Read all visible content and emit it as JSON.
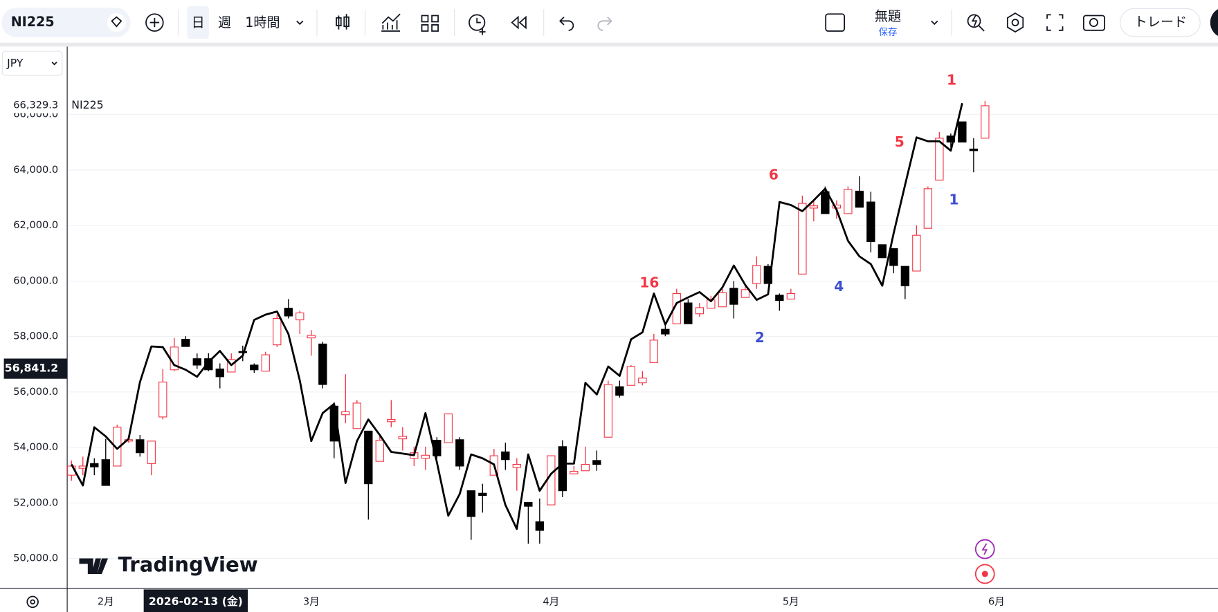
{
  "toolbar": {
    "symbol": "NI225",
    "intervals": [
      "日",
      "週",
      "1時間"
    ],
    "layout_name": "無題",
    "save": "保存",
    "trade": "トレード"
  },
  "brand": "TradingView",
  "chart_data": {
    "type": "candlestick",
    "symbol": "NI225",
    "currency": "JPY",
    "up_color": "#f23645",
    "down_color": "#000000",
    "ohlc": [
      [
        53000,
        53530,
        52800,
        53330
      ],
      [
        53250,
        53670,
        53000,
        53330
      ],
      [
        53420,
        53610,
        53000,
        53300
      ],
      [
        53560,
        54310,
        52630,
        52630
      ],
      [
        53330,
        54820,
        53330,
        54730
      ],
      [
        54230,
        54400,
        54170,
        54280
      ],
      [
        54280,
        54450,
        53670,
        53810
      ],
      [
        53420,
        54230,
        53000,
        54230
      ],
      [
        55100,
        56830,
        55010,
        56360
      ],
      [
        56800,
        57950,
        56750,
        57620
      ],
      [
        57900,
        58010,
        57640,
        57640
      ],
      [
        57200,
        57390,
        56830,
        56970
      ],
      [
        57200,
        57400,
        56750,
        56800
      ],
      [
        56830,
        57030,
        56130,
        56550
      ],
      [
        56720,
        57390,
        56720,
        57170
      ],
      [
        57460,
        57670,
        57110,
        57440
      ],
      [
        56970,
        57030,
        56690,
        56800
      ],
      [
        56750,
        57450,
        56750,
        57340
      ],
      [
        57700,
        58790,
        57620,
        58650
      ],
      [
        59020,
        59350,
        58650,
        58740
      ],
      [
        58600,
        58930,
        58090,
        58850
      ],
      [
        57950,
        58230,
        57310,
        58040
      ],
      [
        57730,
        57810,
        56130,
        56270
      ],
      [
        55490,
        55630,
        53610,
        54230
      ],
      [
        55180,
        56640,
        54870,
        55290
      ],
      [
        54680,
        55710,
        54680,
        55600
      ],
      [
        54590,
        54590,
        51400,
        52690
      ],
      [
        53500,
        54450,
        53500,
        54260
      ],
      [
        54930,
        55710,
        54730,
        55010
      ],
      [
        54310,
        54730,
        53890,
        54400
      ],
      [
        53610,
        54030,
        53330,
        53810
      ],
      [
        53610,
        54030,
        53190,
        53720
      ],
      [
        54260,
        54370,
        53610,
        53700
      ],
      [
        54170,
        55210,
        54170,
        55210
      ],
      [
        54280,
        54370,
        53190,
        53330
      ],
      [
        52440,
        52440,
        50670,
        51510
      ],
      [
        52350,
        52690,
        51650,
        52270
      ],
      [
        53000,
        53950,
        53000,
        53700
      ],
      [
        53840,
        54170,
        53190,
        53560
      ],
      [
        53280,
        53610,
        52440,
        53390
      ],
      [
        52020,
        52020,
        50530,
        51880
      ],
      [
        51320,
        52160,
        50530,
        51010
      ],
      [
        51930,
        53700,
        51930,
        53700
      ],
      [
        54030,
        54260,
        52210,
        52440
      ],
      [
        53050,
        53330,
        53050,
        53140
      ],
      [
        53160,
        54030,
        53160,
        53390
      ],
      [
        53530,
        53890,
        53160,
        53390
      ],
      [
        54370,
        56410,
        54370,
        56270
      ],
      [
        56190,
        56410,
        55800,
        55880
      ],
      [
        56240,
        56970,
        56240,
        56920
      ],
      [
        56330,
        56750,
        56240,
        56500
      ],
      [
        57060,
        58090,
        57060,
        57870
      ],
      [
        58260,
        58430,
        58010,
        58090
      ],
      [
        58460,
        59720,
        58460,
        59550
      ],
      [
        59210,
        59350,
        58460,
        58460
      ],
      [
        58820,
        59210,
        58710,
        59040
      ],
      [
        59020,
        59470,
        59020,
        59320
      ],
      [
        59070,
        59720,
        59070,
        59580
      ],
      [
        59740,
        60000,
        58650,
        59160
      ],
      [
        59410,
        59800,
        59410,
        59690
      ],
      [
        59910,
        60890,
        59720,
        60560
      ],
      [
        60530,
        60610,
        59910,
        59910
      ],
      [
        59490,
        59550,
        58930,
        59300
      ],
      [
        59350,
        59720,
        59350,
        59550
      ],
      [
        60250,
        63080,
        60250,
        62800
      ],
      [
        62630,
        62910,
        62150,
        62710
      ],
      [
        63220,
        63410,
        62430,
        62430
      ],
      [
        62630,
        62910,
        62240,
        62740
      ],
      [
        62430,
        63410,
        62430,
        63300
      ],
      [
        63240,
        63780,
        62660,
        62660
      ],
      [
        62850,
        63220,
        61030,
        61420
      ],
      [
        61310,
        61310,
        60840,
        60840
      ],
      [
        61170,
        61170,
        60280,
        60560
      ],
      [
        60530,
        60530,
        59350,
        59830
      ],
      [
        60360,
        62010,
        60360,
        61650
      ],
      [
        61900,
        63410,
        61900,
        63330
      ],
      [
        63640,
        65370,
        63640,
        65150
      ],
      [
        65230,
        65320,
        64810,
        65010
      ],
      [
        65740,
        65740,
        65010,
        65010
      ],
      [
        64760,
        65150,
        63920,
        64700
      ],
      [
        65150,
        66490,
        65150,
        66320
      ]
    ],
    "overlay": {
      "type": "line",
      "color": "#000000",
      "values": [
        53390,
        52630,
        54730,
        54400,
        53950,
        54310,
        56360,
        57640,
        57620,
        56970,
        56800,
        56550,
        57080,
        57480,
        56970,
        57310,
        58600,
        58790,
        58900,
        58090,
        56410,
        54230,
        55240,
        55570,
        52720,
        54230,
        55010,
        54450,
        53840,
        53780,
        53720,
        55240,
        53470,
        51540,
        52320,
        53750,
        53610,
        53390,
        51930,
        51060,
        53750,
        52440,
        53050,
        53420,
        53420,
        56330,
        55910,
        56920,
        56580,
        57900,
        58150,
        59550,
        58430,
        59210,
        59410,
        59600,
        59270,
        59770,
        60560,
        59860,
        59320,
        59520,
        62850,
        62740,
        62520,
        62910,
        63330,
        62570,
        61450,
        60890,
        60610,
        59830,
        61730,
        63470,
        65180,
        65040,
        65040,
        64700,
        66410,
        null,
        null
      ]
    },
    "xlim": [
      -0.34,
      100.4
    ],
    "xticks": [
      {
        "value": 3,
        "label": "2月"
      },
      {
        "value": 21,
        "label": "3月"
      },
      {
        "value": 42,
        "label": "4月"
      },
      {
        "value": 63,
        "label": "5月"
      },
      {
        "value": 81,
        "label": "6月"
      }
    ],
    "ylim": [
      48936,
      68452
    ],
    "yticks": [
      {
        "value": 50000,
        "label": "50,000.0"
      },
      {
        "value": 52000,
        "label": "52,000.0"
      },
      {
        "value": 54000,
        "label": "54,000.0"
      },
      {
        "value": 56000,
        "label": "56,000.0"
      },
      {
        "value": 58000,
        "label": "58,000.0"
      },
      {
        "value": 60000,
        "label": "60,000.0"
      },
      {
        "value": 62000,
        "label": "62,000.0"
      },
      {
        "value": 64000,
        "label": "64,000.0"
      },
      {
        "value": 66000,
        "label": "66,000.0"
      }
    ],
    "grid": true,
    "last_price": {
      "value": 66329.3,
      "label": "66,329.3"
    },
    "crosshair": {
      "value": 56841.2,
      "label": "56,841.2"
    },
    "crosshair_date": "2026-02-13 (金)",
    "annotations": [
      {
        "text": "1",
        "color": "#f23645"
      },
      {
        "text": "5",
        "color": "#f23645"
      },
      {
        "text": "6",
        "color": "#f23645"
      },
      {
        "text": "16",
        "color": "#f23645"
      },
      {
        "text": "1",
        "color": "#3d4fd0"
      },
      {
        "text": "4",
        "color": "#3d4fd0"
      },
      {
        "text": "2",
        "color": "#3d4fd0"
      }
    ]
  }
}
